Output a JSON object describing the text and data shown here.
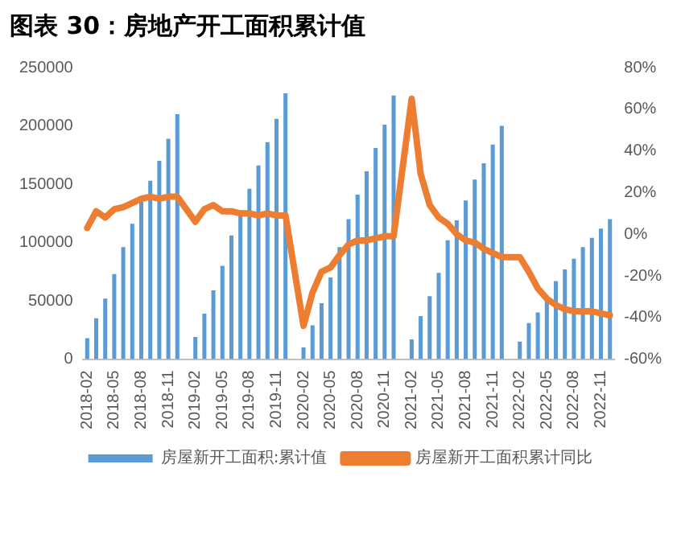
{
  "chart_data": {
    "type": "bar",
    "title": "图表 30：房地产开工面积累计值",
    "categories": [
      "2018-02",
      null,
      null,
      "2018-05",
      null,
      null,
      "2018-08",
      null,
      null,
      "2018-11",
      null,
      null,
      "2019-02",
      null,
      null,
      "2019-05",
      null,
      null,
      "2019-08",
      null,
      null,
      "2019-11",
      null,
      null,
      "2020-02",
      null,
      null,
      "2020-05",
      null,
      null,
      "2020-08",
      null,
      null,
      "2020-11",
      null,
      null,
      "2021-02",
      null,
      null,
      "2021-05",
      null,
      null,
      "2021-08",
      null,
      null,
      "2021-11",
      null,
      null,
      "2022-02",
      null,
      null,
      "2022-05",
      null,
      null,
      "2022-08",
      null,
      null,
      "2022-11",
      null
    ],
    "series": [
      {
        "name": "房屋新开工面积:累计值",
        "color": "#5b9bd5",
        "values": [
          18000,
          35000,
          52000,
          73000,
          96000,
          116000,
          135000,
          153000,
          170000,
          189000,
          210000,
          null,
          19000,
          39000,
          59000,
          80000,
          106000,
          123000,
          146000,
          166000,
          186000,
          206000,
          228000,
          null,
          10000,
          29000,
          48000,
          70000,
          96000,
          120000,
          141000,
          161000,
          181000,
          201000,
          226000,
          null,
          17000,
          37000,
          54000,
          74000,
          102000,
          119000,
          136000,
          154000,
          168000,
          184000,
          200000,
          null,
          15000,
          31000,
          40000,
          52000,
          67000,
          77000,
          86000,
          96000,
          104000,
          112000,
          120000
        ]
      },
      {
        "name": "房屋新开工面积累计同比",
        "type": "line",
        "axis": "y2",
        "color": "#ed7d31",
        "values": [
          3,
          11,
          8,
          12,
          13,
          15,
          17,
          18,
          17,
          18,
          18,
          null,
          6,
          12,
          14,
          11,
          11,
          10,
          10,
          9,
          10,
          9,
          9,
          null,
          -44,
          -28,
          -18,
          -16,
          -10,
          -5,
          -3,
          -3,
          -2,
          -1,
          -1,
          null,
          65,
          29,
          14,
          8,
          5,
          0,
          -3,
          -4,
          -7,
          -9,
          -11,
          null,
          -11,
          -18,
          -26,
          -31,
          -34,
          -36,
          -37,
          -37,
          -37,
          -38,
          -39
        ]
      }
    ],
    "ylim": [
      0,
      250000
    ],
    "yticks": [
      0,
      50000,
      100000,
      150000,
      200000,
      250000
    ],
    "y2lim": [
      -60,
      80
    ],
    "y2ticks": [
      {
        "value": -60,
        "label": "-60%"
      },
      {
        "value": -40,
        "label": "-40%"
      },
      {
        "value": -20,
        "label": "-20%"
      },
      {
        "value": 0,
        "label": "0%"
      },
      {
        "value": 20,
        "label": "20%"
      },
      {
        "value": 40,
        "label": "40%"
      },
      {
        "value": 60,
        "label": "60%"
      },
      {
        "value": 80,
        "label": "80%"
      }
    ],
    "legend": "bottom",
    "marker": "none",
    "line_style": "solid"
  }
}
